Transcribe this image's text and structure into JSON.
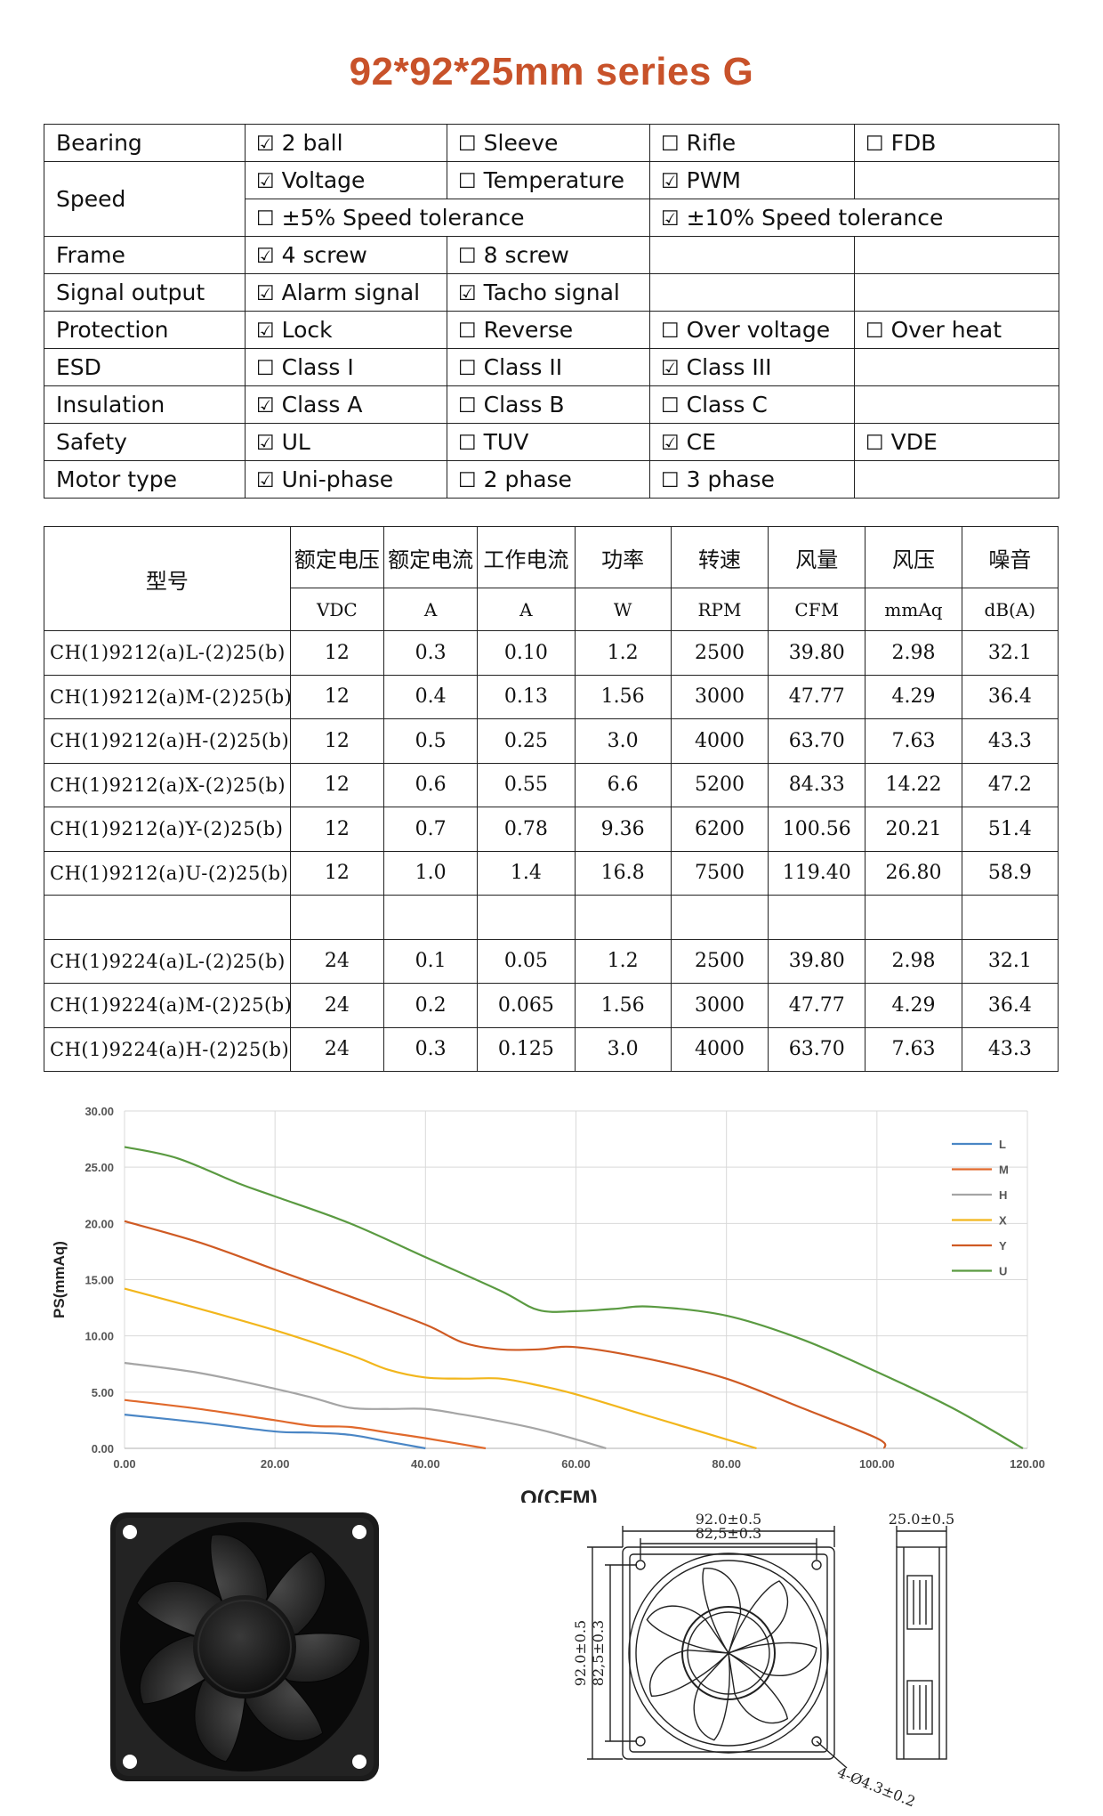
{
  "title": "92*92*25mm series G",
  "features": [
    {
      "label": "Bearing",
      "cells": [
        {
          "checked": true,
          "text": "2 ball"
        },
        {
          "checked": false,
          "text": "Sleeve"
        },
        {
          "checked": false,
          "text": "Rifle"
        },
        {
          "checked": false,
          "text": "FDB"
        }
      ]
    },
    {
      "label": "Speed",
      "cells": [
        {
          "checked": true,
          "text": "Voltage"
        },
        {
          "checked": false,
          "text": "Temperature"
        },
        {
          "checked": true,
          "text": "PWM"
        },
        null
      ]
    },
    {
      "label": "",
      "cells": [
        {
          "checked": false,
          "text": "±5% Speed tolerance"
        },
        {
          "checked": true,
          "text": "±10% Speed tolerance"
        }
      ]
    },
    {
      "label": "Frame",
      "cells": [
        {
          "checked": true,
          "text": "4 screw"
        },
        {
          "checked": false,
          "text": "8 screw"
        },
        null,
        null
      ]
    },
    {
      "label": "Signal output",
      "cells": [
        {
          "checked": true,
          "text": "Alarm signal"
        },
        {
          "checked": true,
          "text": "Tacho signal"
        },
        null,
        null
      ]
    },
    {
      "label": "Protection",
      "cells": [
        {
          "checked": true,
          "text": "Lock"
        },
        {
          "checked": false,
          "text": "Reverse"
        },
        {
          "checked": false,
          "text": "Over voltage"
        },
        {
          "checked": false,
          "text": "Over heat"
        }
      ]
    },
    {
      "label": "ESD",
      "cells": [
        {
          "checked": false,
          "text": "Class I"
        },
        {
          "checked": false,
          "text": "Class II"
        },
        {
          "checked": true,
          "text": "Class III"
        },
        null
      ]
    },
    {
      "label": "Insulation",
      "cells": [
        {
          "checked": true,
          "text": "Class A"
        },
        {
          "checked": false,
          "text": "Class B"
        },
        {
          "checked": false,
          "text": "Class C"
        },
        null
      ]
    },
    {
      "label": "Safety",
      "cells": [
        {
          "checked": true,
          "text": "UL"
        },
        {
          "checked": false,
          "text": "TUV"
        },
        {
          "checked": true,
          "text": "CE"
        },
        {
          "checked": false,
          "text": "VDE"
        }
      ]
    },
    {
      "label": "Motor type",
      "cells": [
        {
          "checked": true,
          "text": "Uni-phase"
        },
        {
          "checked": false,
          "text": "2 phase"
        },
        {
          "checked": false,
          "text": "3 phase"
        },
        null
      ]
    }
  ],
  "checkbox_glyphs": {
    "checked": "☑",
    "unchecked": "☐"
  },
  "spec_table": {
    "model_header": "型号",
    "headers": [
      "额定电压",
      "额定电流",
      "工作电流",
      "功率",
      "转速",
      "风量",
      "风压",
      "噪音"
    ],
    "units": [
      "VDC",
      "A",
      "A",
      "W",
      "RPM",
      "CFM",
      "mmAq",
      "dB(A)"
    ],
    "rows": [
      [
        "CH(1)9212(a)L-(2)25(b)",
        "12",
        "0.3",
        "0.10",
        "1.2",
        "2500",
        "39.80",
        "2.98",
        "32.1"
      ],
      [
        "CH(1)9212(a)M-(2)25(b)",
        "12",
        "0.4",
        "0.13",
        "1.56",
        "3000",
        "47.77",
        "4.29",
        "36.4"
      ],
      [
        "CH(1)9212(a)H-(2)25(b)",
        "12",
        "0.5",
        "0.25",
        "3.0",
        "4000",
        "63.70",
        "7.63",
        "43.3"
      ],
      [
        "CH(1)9212(a)X-(2)25(b)",
        "12",
        "0.6",
        "0.55",
        "6.6",
        "5200",
        "84.33",
        "14.22",
        "47.2"
      ],
      [
        "CH(1)9212(a)Y-(2)25(b)",
        "12",
        "0.7",
        "0.78",
        "9.36",
        "6200",
        "100.56",
        "20.21",
        "51.4"
      ],
      [
        "CH(1)9212(a)U-(2)25(b)",
        "12",
        "1.0",
        "1.4",
        "16.8",
        "7500",
        "119.40",
        "26.80",
        "58.9"
      ],
      [
        "",
        "",
        "",
        "",
        "",
        "",
        "",
        "",
        ""
      ],
      [
        "CH(1)9224(a)L-(2)25(b)",
        "24",
        "0.1",
        "0.05",
        "1.2",
        "2500",
        "39.80",
        "2.98",
        "32.1"
      ],
      [
        "CH(1)9224(a)M-(2)25(b)",
        "24",
        "0.2",
        "0.065",
        "1.56",
        "3000",
        "47.77",
        "4.29",
        "36.4"
      ],
      [
        "CH(1)9224(a)H-(2)25(b)",
        "24",
        "0.3",
        "0.125",
        "3.0",
        "4000",
        "63.70",
        "7.63",
        "43.3"
      ]
    ]
  },
  "chart_data": {
    "type": "line",
    "title": "",
    "xlabel": "Q(CFM)",
    "ylabel": "PS(mmAq)",
    "xlim": [
      0,
      120
    ],
    "ylim": [
      0,
      30
    ],
    "xticks": [
      "0.00",
      "20.00",
      "40.00",
      "60.00",
      "80.00",
      "100.00",
      "120.00"
    ],
    "yticks": [
      "0.00",
      "5.00",
      "10.00",
      "15.00",
      "20.00",
      "25.00",
      "30.00"
    ],
    "grid": true,
    "legend_position": "top-right",
    "series": [
      {
        "name": "L",
        "color": "#4a86c5",
        "points": [
          [
            0,
            3.0
          ],
          [
            10,
            2.3
          ],
          [
            20,
            1.5
          ],
          [
            25,
            1.4
          ],
          [
            30,
            1.2
          ],
          [
            35,
            0.6
          ],
          [
            40,
            0
          ]
        ]
      },
      {
        "name": "M",
        "color": "#e0692c",
        "points": [
          [
            0,
            4.3
          ],
          [
            10,
            3.5
          ],
          [
            20,
            2.5
          ],
          [
            25,
            2.0
          ],
          [
            30,
            1.9
          ],
          [
            35,
            1.4
          ],
          [
            40,
            0.9
          ],
          [
            48,
            0
          ]
        ]
      },
      {
        "name": "H",
        "color": "#a5a5a5",
        "points": [
          [
            0,
            7.6
          ],
          [
            10,
            6.7
          ],
          [
            20,
            5.3
          ],
          [
            25,
            4.5
          ],
          [
            30,
            3.6
          ],
          [
            35,
            3.5
          ],
          [
            40,
            3.5
          ],
          [
            45,
            3.0
          ],
          [
            50,
            2.4
          ],
          [
            55,
            1.7
          ],
          [
            60,
            0.8
          ],
          [
            64,
            0
          ]
        ]
      },
      {
        "name": "X",
        "color": "#f2b61c",
        "points": [
          [
            0,
            14.2
          ],
          [
            10,
            12.4
          ],
          [
            20,
            10.5
          ],
          [
            30,
            8.3
          ],
          [
            35,
            7.0
          ],
          [
            40,
            6.3
          ],
          [
            45,
            6.2
          ],
          [
            50,
            6.2
          ],
          [
            55,
            5.6
          ],
          [
            60,
            4.8
          ],
          [
            70,
            2.8
          ],
          [
            80,
            0.8
          ],
          [
            84,
            0
          ]
        ]
      },
      {
        "name": "Y",
        "color": "#cf5a23",
        "points": [
          [
            0,
            20.2
          ],
          [
            10,
            18.3
          ],
          [
            20,
            15.9
          ],
          [
            30,
            13.5
          ],
          [
            40,
            11.0
          ],
          [
            45,
            9.4
          ],
          [
            50,
            8.8
          ],
          [
            55,
            8.8
          ],
          [
            60,
            9.0
          ],
          [
            70,
            7.9
          ],
          [
            80,
            6.2
          ],
          [
            90,
            3.6
          ],
          [
            100,
            0.9
          ],
          [
            101,
            0
          ]
        ]
      },
      {
        "name": "U",
        "color": "#5a9a41",
        "points": [
          [
            0,
            26.8
          ],
          [
            7,
            25.8
          ],
          [
            15,
            23.6
          ],
          [
            20,
            22.4
          ],
          [
            30,
            20.0
          ],
          [
            40,
            17.0
          ],
          [
            50,
            14.0
          ],
          [
            55,
            12.3
          ],
          [
            60,
            12.2
          ],
          [
            65,
            12.4
          ],
          [
            70,
            12.6
          ],
          [
            80,
            11.8
          ],
          [
            90,
            9.7
          ],
          [
            100,
            6.8
          ],
          [
            110,
            3.6
          ],
          [
            119.4,
            0
          ]
        ]
      }
    ]
  },
  "drawing": {
    "width_outer": "92.0±0.5",
    "width_inner": "82,5±0.3",
    "height_outer": "92.0±0.5",
    "height_inner": "82,5±0.3",
    "depth": "25.0±0.5",
    "hole": "4-Ø4.3±0.2"
  }
}
